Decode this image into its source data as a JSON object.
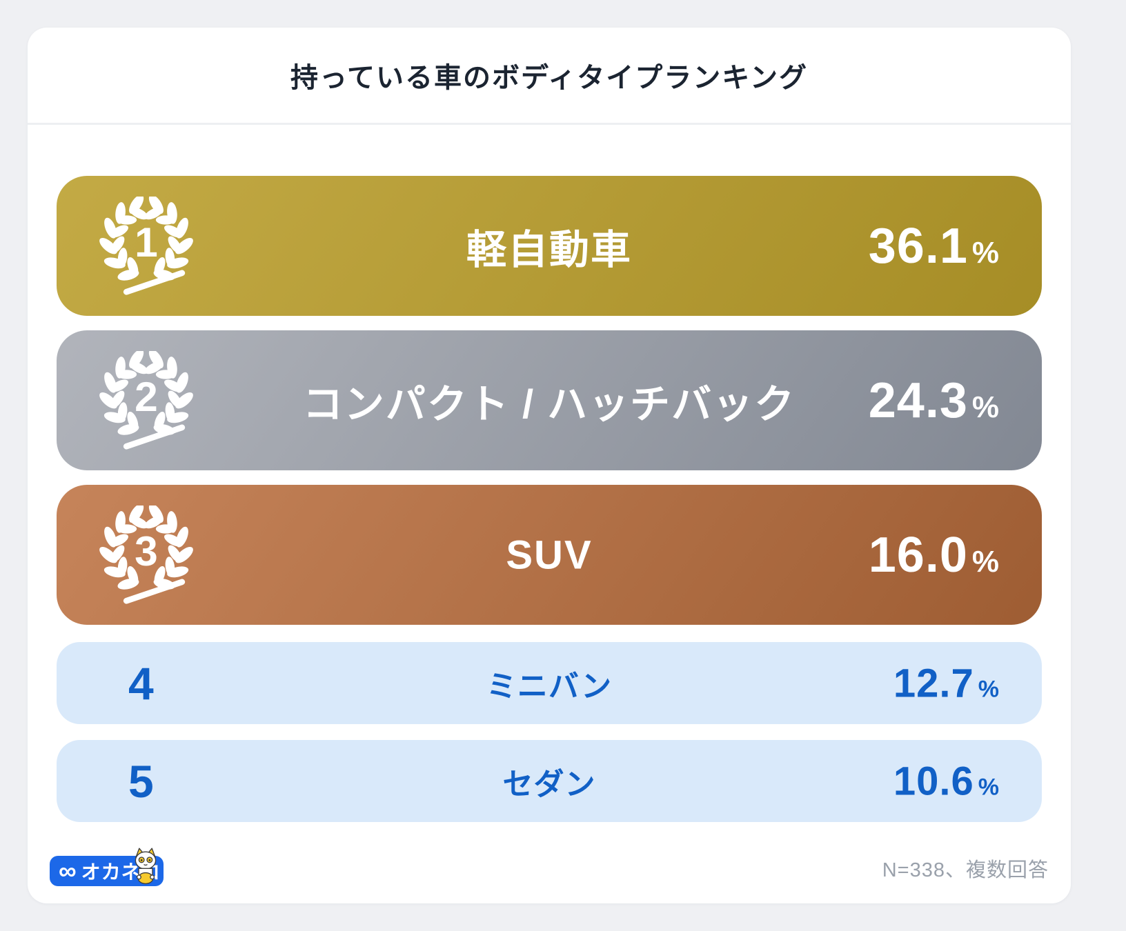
{
  "page_title": "持っている車のボディタイプランキング",
  "chart_data": {
    "type": "bar",
    "title": "持っている車のボディタイプランキング",
    "categories": [
      "軽自動車",
      "コンパクト / ハッチバック",
      "SUV",
      "ミニバン",
      "セダン"
    ],
    "values": [
      36.1,
      24.3,
      16.0,
      12.7,
      10.6
    ],
    "unit": "%",
    "layout": "horizontal ranking list, top3 highlighted with laurel medals (gold/silver/bronze), ranks 4-5 light blue",
    "note": "N=338、複数回答"
  },
  "ranking": [
    {
      "rank": "1",
      "label": "軽自動車",
      "value": "36.1",
      "unit": "%",
      "medal": "gold"
    },
    {
      "rank": "2",
      "label": "コンパクト / ハッチバック",
      "value": "24.3",
      "unit": "%",
      "medal": "silver"
    },
    {
      "rank": "3",
      "label": "SUV",
      "value": "16.0",
      "unit": "%",
      "medal": "bronze"
    },
    {
      "rank": "4",
      "label": "ミニバン",
      "value": "12.7",
      "unit": "%",
      "medal": "none"
    },
    {
      "rank": "5",
      "label": "セダン",
      "value": "10.6",
      "unit": "%",
      "medal": "none"
    }
  ],
  "footer": {
    "logo_mark": "∞",
    "logo_text": "オカネコ",
    "note": "N=338、複数回答"
  },
  "colors": {
    "background": "#eff0f3",
    "card": "#ffffff",
    "title_text": "#1b2431",
    "gold_start": "#c3aa45",
    "gold_end": "#a68d26",
    "silver_start": "#b1b4bb",
    "silver_end": "#828893",
    "bronze_start": "#c6845a",
    "bronze_end": "#9e5d33",
    "plain_bar": "#d9e9fa",
    "blue_text": "#1160c6",
    "logo_blue": "#1c68e8",
    "note_gray": "#9aa1ab",
    "white": "#ffffff"
  }
}
